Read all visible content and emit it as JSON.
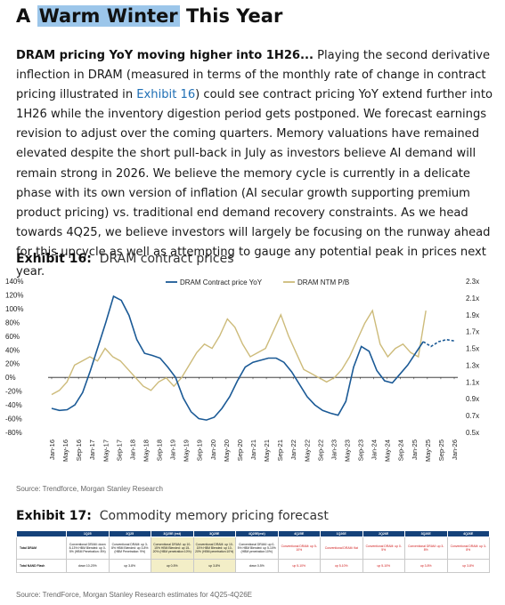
{
  "title": {
    "pre": "A ",
    "highlight": "Warm Winter",
    "post": " This Year"
  },
  "paragraph": {
    "lead": "DRAM pricing YoY moving higher into 1H26...",
    "p1": " Playing the second derivative inflection in DRAM (measured in terms of the monthly rate of change in contract pricing illustrated in ",
    "link": "Exhibit 16",
    "p2": ") could see contract pricing YoY extend further into 1H26 while the inventory digestion period gets postponed. We forecast earnings revision to adjust over the coming quarters. Memory valuations have remained elevated despite the short pull-back in July as investors believe AI demand will remain strong in 2026. We believe the memory cycle is currently in a delicate phase with its own version of inflation (AI secular growth supporting premium product pricing) vs. traditional end demand recovery constraints. As we head towards 4Q25, we believe investors will largely be focusing on the runway ahead for this upcycle as well as attempting to gauge any potential peak in prices next year."
  },
  "exhibit16": {
    "label": "Exhibit 16:",
    "subtitle": "DRAM contract prices",
    "source": "Source: Trendforce, Morgan Stanley Research"
  },
  "exhibit17": {
    "label": "Exhibit 17:",
    "subtitle": "Commodity memory pricing forecast",
    "source": "Source: TrendForce, Morgan Stanley Research estimates for 4Q25-4Q26E"
  },
  "chart_data": {
    "type": "line",
    "title": "",
    "legend_position": "top",
    "grid": false,
    "x_ticks": [
      "Jan-16",
      "May-16",
      "Sep-16",
      "Jan-17",
      "May-17",
      "Sep-17",
      "Jan-18",
      "May-18",
      "Sep-18",
      "Jan-19",
      "May-19",
      "Sep-19",
      "Jan-20",
      "May-20",
      "Sep-20",
      "Jan-21",
      "May-21",
      "Sep-21",
      "Jan-22",
      "May-22",
      "Sep-22",
      "Jan-23",
      "May-23",
      "Sep-23",
      "Jan-24",
      "May-24",
      "Sep-24",
      "Jan-25",
      "May-25",
      "Sep-25",
      "Jan-26"
    ],
    "y_left": {
      "ticks": [
        "140%",
        "120%",
        "100%",
        "80%",
        "60%",
        "40%",
        "20%",
        "0%",
        "-20%",
        "-40%",
        "-60%",
        "-80%"
      ],
      "range": [
        -80,
        140
      ],
      "unit": "%"
    },
    "y_right": {
      "ticks": [
        "2.3x",
        "2.1x",
        "1.9x",
        "1.7x",
        "1.5x",
        "1.3x",
        "1.1x",
        "0.9x",
        "0.7x",
        "0.5x"
      ],
      "range": [
        0.5,
        2.3
      ]
    },
    "series": [
      {
        "name": "DRAM Contract price YoY",
        "axis": "left",
        "color": "#1b5a96",
        "values": [
          -45,
          -48,
          -47,
          -40,
          -22,
          10,
          45,
          80,
          118,
          112,
          90,
          55,
          35,
          32,
          28,
          15,
          0,
          -30,
          -50,
          -60,
          -62,
          -58,
          -45,
          -28,
          -5,
          15,
          22,
          25,
          28,
          28,
          22,
          8,
          -10,
          -28,
          -40,
          -48,
          -52,
          -55,
          -35,
          15,
          45,
          38,
          10,
          -5,
          -8,
          5,
          18,
          35,
          52
        ],
        "forecast_values": [
          38,
          45,
          52,
          55,
          53
        ]
      },
      {
        "name": "DRAM NTM P/B",
        "axis": "right",
        "color": "#cdbb7a",
        "values": [
          0.95,
          1.0,
          1.1,
          1.3,
          1.35,
          1.4,
          1.35,
          1.5,
          1.4,
          1.35,
          1.25,
          1.15,
          1.05,
          1.0,
          1.1,
          1.15,
          1.05,
          1.15,
          1.3,
          1.45,
          1.55,
          1.5,
          1.65,
          1.85,
          1.75,
          1.55,
          1.4,
          1.45,
          1.5,
          1.7,
          1.9,
          1.65,
          1.45,
          1.25,
          1.2,
          1.15,
          1.1,
          1.15,
          1.25,
          1.4,
          1.6,
          1.8,
          1.95,
          1.55,
          1.4,
          1.5,
          1.55,
          1.45,
          1.4,
          1.95
        ]
      }
    ]
  },
  "forecast_table": {
    "headers": [
      "",
      "1Q25",
      "2Q25",
      "3Q25E (est)",
      "3Q25E",
      "4Q25E(est)",
      "4Q25E",
      "1Q26E",
      "2Q26E",
      "3Q26E",
      "4Q26E"
    ],
    "rows": [
      {
        "label": "Total DRAM",
        "cells": [
          "Conventional DRAM: down 8-13% HBM Blended: up 0-5% (HBM Penetration: 8%)",
          "Conventional DRAM: up 3-8% HBM Blended: up 3-8% (HBM Penetration: 9%)",
          "Conventional DRAM: up 10-15% HBM Blended: up 15-20% (HBM penetration:10%)",
          "Conventional DRAM: up 10-15% HBM Blended: up 10-20% (HBM penetration:10%)",
          "Conventional DRAM: up 0-5% HBM Blended: up 5-10% (HBM penetration:10%)",
          "Conventional DRAM: up 5-10%",
          "Conventional DRAM: flat",
          "Conventional DRAM: up 0-5%",
          "Conventional DRAM: up 3-8%",
          "Conventional DRAM: up 3-8%"
        ]
      },
      {
        "label": "Total NAND Flash",
        "cells": [
          "down 10-20%",
          "up 3-8%",
          "up 0-5%",
          "up 3-8%",
          "down 0-5%",
          "up 5-10%",
          "up 5-10%",
          "up 5-10%",
          "up 3-8%",
          "up 3-8%"
        ]
      }
    ]
  }
}
